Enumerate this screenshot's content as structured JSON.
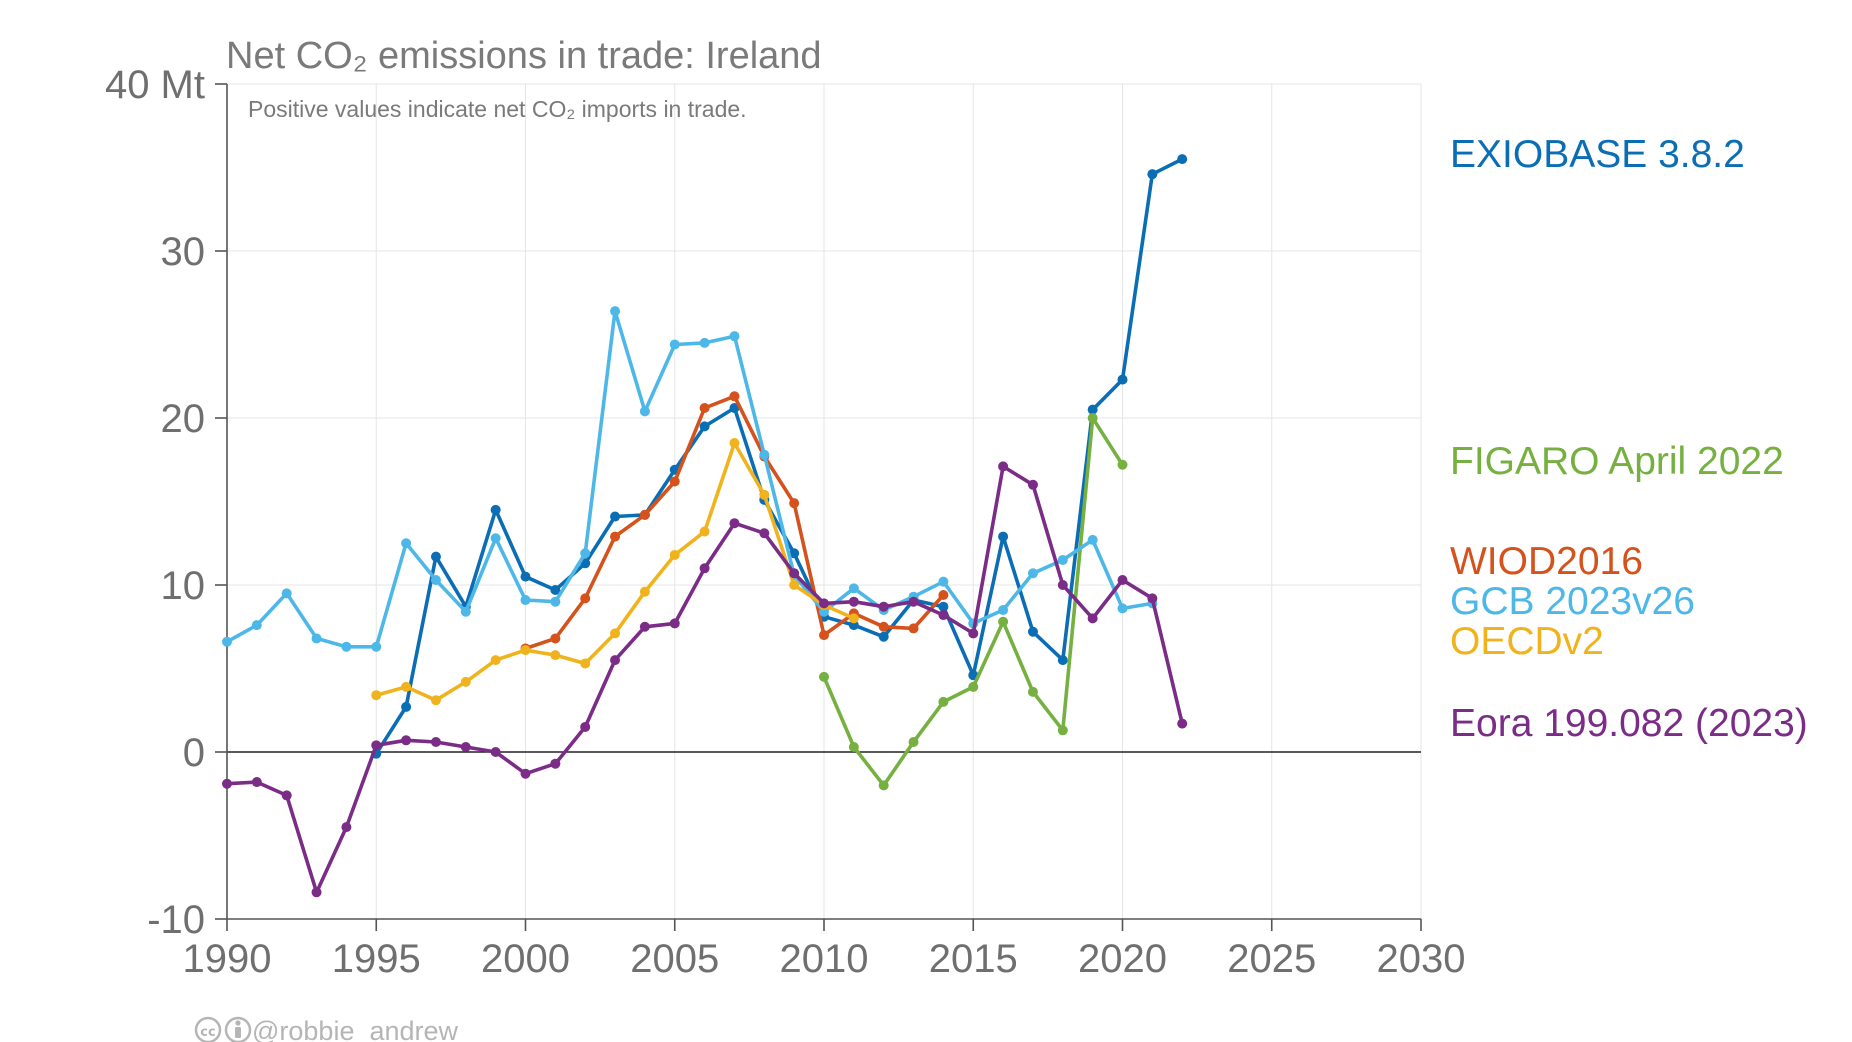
{
  "chart_data": {
    "type": "line",
    "title": "Net CO₂ emissions in trade: Ireland",
    "subtitle": "Positive values indicate net CO₂ imports in trade.",
    "xlim": [
      1990,
      2030
    ],
    "ylim": [
      -10,
      40
    ],
    "x_ticks": [
      "1990",
      "1995",
      "2000",
      "2005",
      "2010",
      "2015",
      "2020",
      "2025",
      "2030"
    ],
    "y_ticks": [
      "40 Mt",
      "30",
      "20",
      "10",
      "0",
      "-10"
    ],
    "grid": true,
    "legend_position": "right",
    "series": [
      {
        "name": "EXIOBASE 3.8.2",
        "color": "#0b6eb5",
        "x": [
          1995,
          1996,
          1997,
          1998,
          1999,
          2000,
          2001,
          2002,
          2003,
          2004,
          2005,
          2006,
          2007,
          2008,
          2009,
          2010,
          2011,
          2012,
          2013,
          2014,
          2015,
          2016,
          2017,
          2018,
          2019,
          2020,
          2021,
          2022
        ],
        "y": [
          -0.1,
          2.7,
          11.7,
          8.7,
          14.5,
          10.5,
          9.7,
          11.3,
          14.1,
          14.2,
          16.9,
          19.5,
          20.6,
          15.1,
          11.9,
          8.1,
          7.6,
          6.9,
          9.1,
          8.7,
          4.6,
          12.9,
          7.2,
          5.5,
          20.5,
          22.3,
          34.6,
          35.5
        ]
      },
      {
        "name": "FIGARO April 2022",
        "color": "#76b041",
        "x": [
          2010,
          2011,
          2012,
          2013,
          2014,
          2015,
          2016,
          2017,
          2018,
          2019,
          2020
        ],
        "y": [
          4.5,
          0.3,
          -2.0,
          0.6,
          3.0,
          3.9,
          7.8,
          3.6,
          1.3,
          20.0,
          17.2
        ]
      },
      {
        "name": "WIOD2016",
        "color": "#d5521c",
        "x": [
          2000,
          2001,
          2002,
          2003,
          2004,
          2005,
          2006,
          2007,
          2008,
          2009,
          2010,
          2011,
          2012,
          2013,
          2014
        ],
        "y": [
          6.2,
          6.8,
          9.2,
          12.9,
          14.2,
          16.2,
          20.6,
          21.3,
          17.7,
          14.9,
          7.0,
          8.3,
          7.5,
          7.4,
          9.4
        ]
      },
      {
        "name": "GCB 2023v26",
        "color": "#4db8e8",
        "x": [
          1990,
          1991,
          1992,
          1993,
          1994,
          1995,
          1996,
          1997,
          1998,
          1999,
          2000,
          2001,
          2002,
          2003,
          2004,
          2005,
          2006,
          2007,
          2008,
          2009,
          2010,
          2011,
          2012,
          2013,
          2014,
          2015,
          2016,
          2017,
          2018,
          2019,
          2020,
          2021
        ],
        "y": [
          6.6,
          7.6,
          9.5,
          6.8,
          6.3,
          6.3,
          12.5,
          10.3,
          8.4,
          12.8,
          9.1,
          9.0,
          11.9,
          26.4,
          20.4,
          24.4,
          24.5,
          24.9,
          17.8,
          10.6,
          8.4,
          9.8,
          8.5,
          9.3,
          10.2,
          7.7,
          8.5,
          10.7,
          11.5,
          12.7,
          8.6,
          8.9
        ]
      },
      {
        "name": "OECDv2",
        "color": "#f0b31d",
        "x": [
          1995,
          1996,
          1997,
          1998,
          1999,
          2000,
          2001,
          2002,
          2003,
          2004,
          2005,
          2006,
          2007,
          2008,
          2009,
          2010,
          2011
        ],
        "y": [
          3.4,
          3.9,
          3.1,
          4.2,
          5.5,
          6.1,
          5.8,
          5.3,
          7.1,
          9.6,
          11.8,
          13.2,
          18.5,
          15.4,
          10.0,
          8.8,
          8.0
        ]
      },
      {
        "name": "Eora 199.082 (2023)",
        "color": "#7b2c87",
        "x": [
          1990,
          1991,
          1992,
          1993,
          1994,
          1995,
          1996,
          1997,
          1998,
          1999,
          2000,
          2001,
          2002,
          2003,
          2004,
          2005,
          2006,
          2007,
          2008,
          2009,
          2010,
          2011,
          2012,
          2013,
          2014,
          2015,
          2016,
          2017,
          2018,
          2019,
          2020,
          2021,
          2022
        ],
        "y": [
          -1.9,
          -1.8,
          -2.6,
          -8.4,
          -4.5,
          0.4,
          0.7,
          0.6,
          0.3,
          0.0,
          -1.3,
          -0.7,
          1.5,
          5.5,
          7.5,
          7.7,
          11.0,
          13.7,
          13.1,
          10.7,
          8.9,
          9.0,
          8.7,
          9.0,
          8.2,
          7.1,
          17.1,
          16.0,
          10.0,
          8.0,
          10.3,
          9.2,
          1.7
        ]
      }
    ]
  },
  "legend": [
    {
      "label": "EXIOBASE 3.8.2",
      "color": "#0b6eb5"
    },
    {
      "label": "FIGARO April 2022",
      "color": "#76b041"
    },
    {
      "label": "WIOD2016",
      "color": "#d5521c"
    },
    {
      "label": "GCB 2023v26",
      "color": "#4db8e8"
    },
    {
      "label": "OECDv2",
      "color": "#f0b31d"
    },
    {
      "label": "Eora 199.082 (2023)",
      "color": "#7b2c87"
    }
  ],
  "credit": "@robbie_andrew",
  "credit_icons": [
    "cc-icon",
    "by-icon"
  ]
}
